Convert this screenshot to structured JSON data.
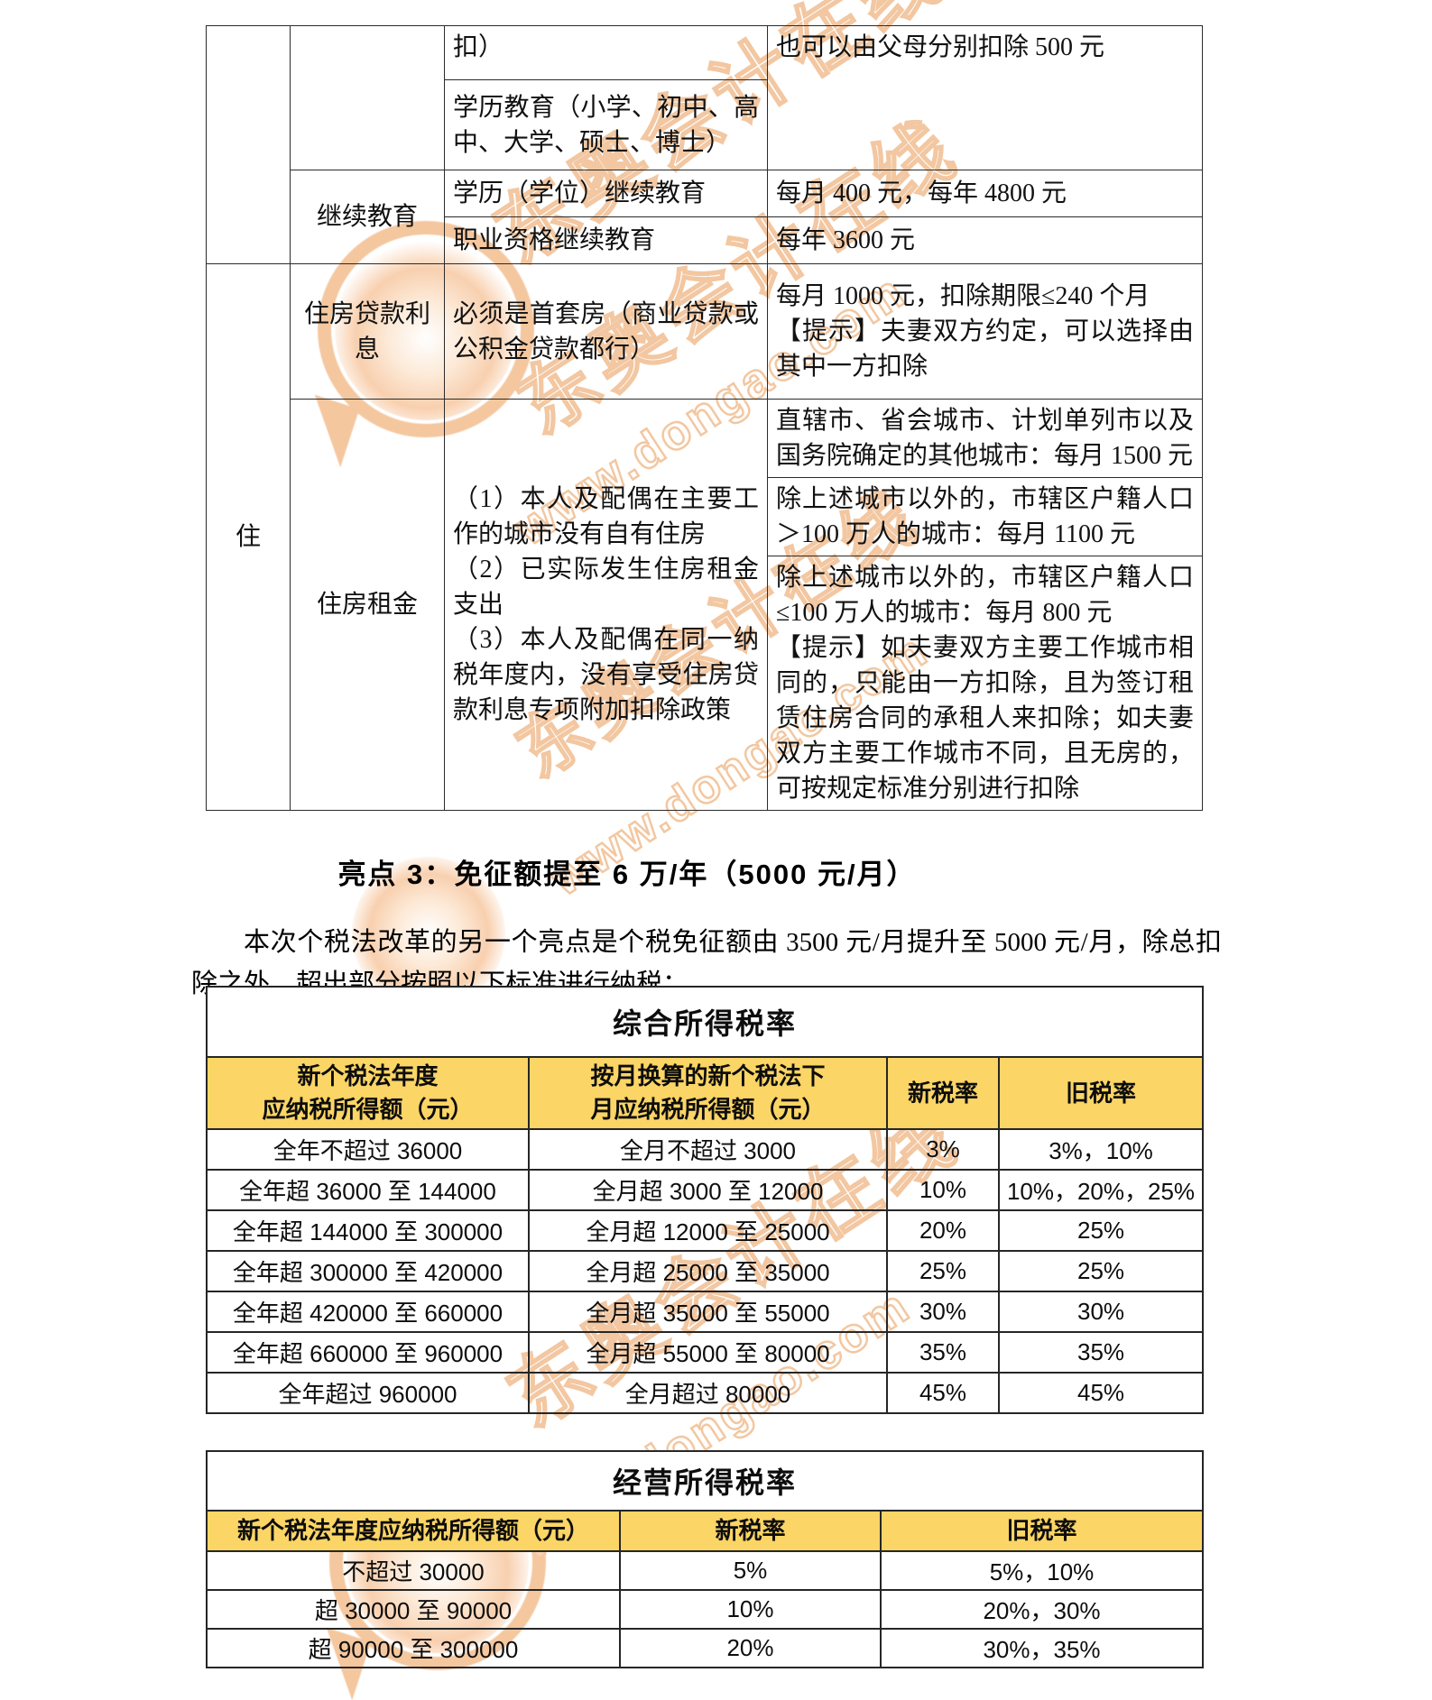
{
  "watermark": {
    "brand": "东奥会计在线",
    "url": "www.dongao.com",
    "color": "#EC9A52"
  },
  "deduction_table": {
    "category": "住",
    "carryover": {
      "condition_tail": "扣）",
      "amount_tail": "也可以由父母分别扣除 500 元",
      "edu_scope": "学历教育（小学、初中、高中、大学、硕士、博士）"
    },
    "continuing_education": {
      "label": "继续教育",
      "degree_item": "学历（学位）继续教育",
      "degree_amount": "每月 400 元，每年 4800 元",
      "vocational_item": "职业资格继续教育",
      "vocational_amount": "每年 3600 元"
    },
    "mortgage_interest": {
      "label": "住房贷款利息",
      "condition": "必须是首套房（商业贷款或公积金贷款都行）",
      "amount": "每月 1000 元，扣除期限≤240 个月\n【提示】夫妻双方约定，可以选择由其中一方扣除"
    },
    "housing_rent": {
      "label": "住房租金",
      "conditions": "（1）本人及配偶在主要工作的城市没有自有住房\n（2）已实际发生住房租金支出\n（3）本人及配偶在同一纳税年度内，没有享受住房贷款利息专项附加扣除政策",
      "tier1": "直辖市、省会城市、计划单列市以及国务院确定的其他城市：每月 1500 元",
      "tier2": "除上述城市以外的，市辖区户籍人口＞100 万人的城市：每月 1100 元",
      "tier3": "除上述城市以外的，市辖区户籍人口≤100 万人的城市：每月 800 元\n【提示】如夫妻双方主要工作城市相同的，只能由一方扣除，且为签订租赁住房合同的承租人来扣除；如夫妻双方主要工作城市不同，且无房的，可按规定标准分别进行扣除"
    }
  },
  "highlight": {
    "title": "亮点 3：免征额提至 6 万/年（5000 元/月）",
    "paragraph": "本次个税法改革的另一个亮点是个税免征额由 3500 元/月提升至 5000 元/月，除总扣除之外，超出部分按照以下标准进行纳税："
  },
  "comprehensive_tax_table": {
    "title": "综合所得税率",
    "headers": [
      "新个税法年度\n应纳税所得额（元）",
      "按月换算的新个税法下\n月应纳税所得额（元）",
      "新税率",
      "旧税率"
    ],
    "rows": [
      [
        "全年不超过 36000",
        "全月不超过 3000",
        "3%",
        "3%，10%"
      ],
      [
        "全年超 36000 至 144000",
        "全月超 3000 至 12000",
        "10%",
        "10%，20%，25%"
      ],
      [
        "全年超 144000 至 300000",
        "全月超 12000 至 25000",
        "20%",
        "25%"
      ],
      [
        "全年超 300000 至 420000",
        "全月超 25000 至 35000",
        "25%",
        "25%"
      ],
      [
        "全年超 420000 至 660000",
        "全月超 35000 至 55000",
        "30%",
        "30%"
      ],
      [
        "全年超 660000 至 960000",
        "全月超 55000 至 80000",
        "35%",
        "35%"
      ],
      [
        "全年超过 960000",
        "全月超过 80000",
        "45%",
        "45%"
      ]
    ]
  },
  "business_tax_table": {
    "title": "经营所得税率",
    "headers": [
      "新个税法年度应纳税所得额（元）",
      "新税率",
      "旧税率"
    ],
    "rows": [
      [
        "不超过 30000",
        "5%",
        "5%，10%"
      ],
      [
        "超 30000 至 90000",
        "10%",
        "20%，30%"
      ],
      [
        "超 90000 至 300000",
        "20%",
        "30%，35%"
      ]
    ]
  }
}
